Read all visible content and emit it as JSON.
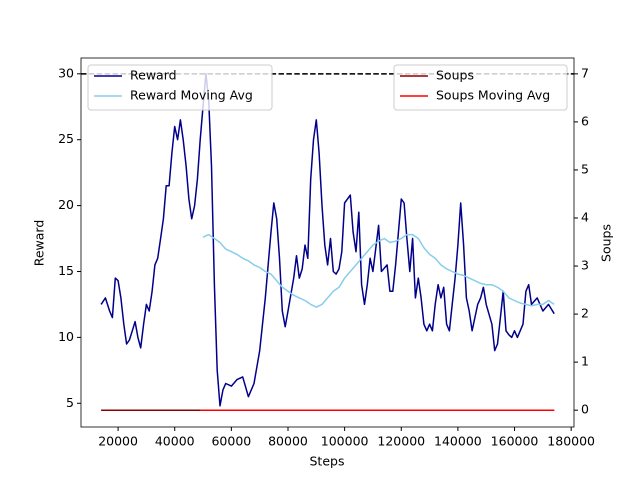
{
  "chart_data": {
    "type": "line",
    "xlabel": "Steps",
    "ylabel": "Reward",
    "y2label": "Soups",
    "xlim": [
      6900,
      181000
    ],
    "ylim": [
      3.2,
      31.2
    ],
    "y2lim": [
      -0.35,
      7.33
    ],
    "xticks": [
      20000,
      40000,
      60000,
      80000,
      100000,
      120000,
      140000,
      160000,
      180000
    ],
    "yticks": [
      5,
      10,
      15,
      20,
      25,
      30
    ],
    "y2ticks": [
      0,
      1,
      2,
      3,
      4,
      5,
      6,
      7
    ],
    "legend_loc": "upper left",
    "legend2_loc": "upper right",
    "reference_lines": [
      {
        "axis": "y2",
        "value": 7,
        "color": "#c8c8c8"
      },
      {
        "axis": "y",
        "value": 30,
        "color": "#000000"
      }
    ],
    "series": [
      {
        "name": "Reward",
        "color": "#00008b",
        "axis": "y",
        "x": [
          14000,
          15500,
          17000,
          18000,
          19000,
          20000,
          21000,
          22000,
          23000,
          24000,
          25000,
          26000,
          27000,
          28000,
          29000,
          30000,
          31000,
          32000,
          33000,
          34000,
          35000,
          36000,
          37000,
          38000,
          39000,
          40000,
          41000,
          42000,
          43000,
          44000,
          45000,
          46000,
          47000,
          48000,
          49000,
          50000,
          51000,
          52000,
          53000,
          54000,
          55000,
          56000,
          57000,
          58000,
          60000,
          62000,
          64000,
          66000,
          68000,
          70000,
          72000,
          74000,
          75000,
          76000,
          77000,
          78000,
          79000,
          80000,
          82000,
          83000,
          84000,
          85000,
          86000,
          87000,
          88000,
          89000,
          90000,
          91000,
          92000,
          93000,
          94000,
          95000,
          96000,
          97000,
          98000,
          99000,
          100000,
          102000,
          103000,
          104000,
          105000,
          106000,
          107000,
          108000,
          109000,
          110000,
          112000,
          113000,
          115000,
          116000,
          117000,
          118000,
          120000,
          121000,
          122000,
          123000,
          124000,
          125000,
          126000,
          127000,
          128000,
          129000,
          130000,
          131000,
          132000,
          133000,
          134000,
          135000,
          136000,
          137000,
          138000,
          139000,
          140000,
          141000,
          142000,
          143000,
          144000,
          145000,
          146000,
          147000,
          148000,
          149000,
          150000,
          152000,
          153000,
          154000,
          155000,
          156000,
          157000,
          158000,
          159000,
          160000,
          161000,
          162000,
          163000,
          164000,
          165000,
          166000,
          168000,
          170000,
          172000,
          174000
        ],
        "values": [
          12.5,
          13,
          12,
          11.5,
          14.5,
          14.3,
          13,
          11,
          9.5,
          9.8,
          10.5,
          11.2,
          10,
          9.2,
          11,
          12.5,
          12,
          13.5,
          15.5,
          16,
          17.5,
          19,
          21.5,
          21.5,
          24,
          26,
          25,
          26.5,
          25,
          23,
          20.5,
          19,
          20,
          22,
          25,
          27.5,
          30,
          28,
          23,
          14,
          7.5,
          4.8,
          6,
          6.5,
          6.3,
          6.8,
          7,
          5.5,
          6.5,
          9,
          13,
          18,
          20.2,
          19,
          16,
          12,
          10.8,
          12,
          14.5,
          16.2,
          14.5,
          15.2,
          17,
          16,
          22,
          25,
          26.5,
          24,
          20,
          17,
          15.5,
          17.5,
          15,
          14.8,
          15.2,
          16.5,
          20.2,
          20.8,
          18,
          16.5,
          19.5,
          14,
          12.5,
          14,
          16,
          15,
          18.5,
          15,
          15.5,
          13.5,
          13.5,
          15.5,
          20.5,
          20.2,
          17.5,
          15,
          17.5,
          13,
          14.5,
          13,
          11,
          10.5,
          11,
          10.5,
          12.5,
          14,
          13,
          13.8,
          11,
          10.5,
          12.5,
          14.5,
          17,
          20.2,
          17,
          13,
          12,
          10.5,
          11.5,
          12.5,
          13,
          13.8,
          12.5,
          11,
          9,
          9.5,
          11.5,
          13.5,
          10.5,
          10.2,
          10,
          10.5,
          10,
          10.5,
          11,
          13.5,
          14,
          12.5,
          13,
          12,
          12.5,
          11.8
        ]
      },
      {
        "name": "Reward Moving Avg",
        "color": "#87ceeb",
        "axis": "y",
        "x": [
          50000,
          52000,
          54000,
          56000,
          58000,
          60000,
          62000,
          64000,
          66000,
          68000,
          70000,
          72000,
          74000,
          76000,
          78000,
          80000,
          82000,
          84000,
          86000,
          88000,
          90000,
          92000,
          94000,
          96000,
          98000,
          100000,
          102000,
          104000,
          106000,
          108000,
          110000,
          112000,
          114000,
          116000,
          118000,
          120000,
          122000,
          124000,
          126000,
          128000,
          130000,
          132000,
          134000,
          136000,
          138000,
          140000,
          142000,
          144000,
          146000,
          148000,
          150000,
          152000,
          154000,
          156000,
          158000,
          160000,
          162000,
          164000,
          166000,
          168000,
          170000,
          172000,
          174000
        ],
        "values": [
          17.6,
          17.8,
          17.5,
          17.2,
          16.7,
          16.5,
          16.3,
          16.0,
          15.8,
          15.5,
          15.3,
          15.0,
          14.8,
          14.3,
          13.8,
          13.5,
          13.2,
          13.0,
          12.8,
          12.5,
          12.3,
          12.5,
          13,
          13.5,
          13.8,
          14.5,
          15,
          15.5,
          16,
          16.5,
          17,
          17.3,
          17.5,
          17.2,
          17.3,
          17.5,
          17.8,
          17.8,
          17.5,
          16.8,
          16.3,
          16,
          15.5,
          15.2,
          15,
          14.8,
          14.7,
          14.5,
          14.3,
          14.1,
          14,
          14,
          13.8,
          13.5,
          13,
          12.8,
          12.6,
          12.5,
          12.4,
          12.5,
          12.5,
          12.8,
          12.5
        ]
      },
      {
        "name": "Soups",
        "color": "#8b0000",
        "axis": "y2",
        "x": [
          14000,
          174000
        ],
        "values": [
          0,
          0
        ]
      },
      {
        "name": "Soups Moving Avg",
        "color": "#ff0000",
        "axis": "y2",
        "x": [
          49000,
          174000
        ],
        "values": [
          0,
          0
        ]
      }
    ]
  }
}
